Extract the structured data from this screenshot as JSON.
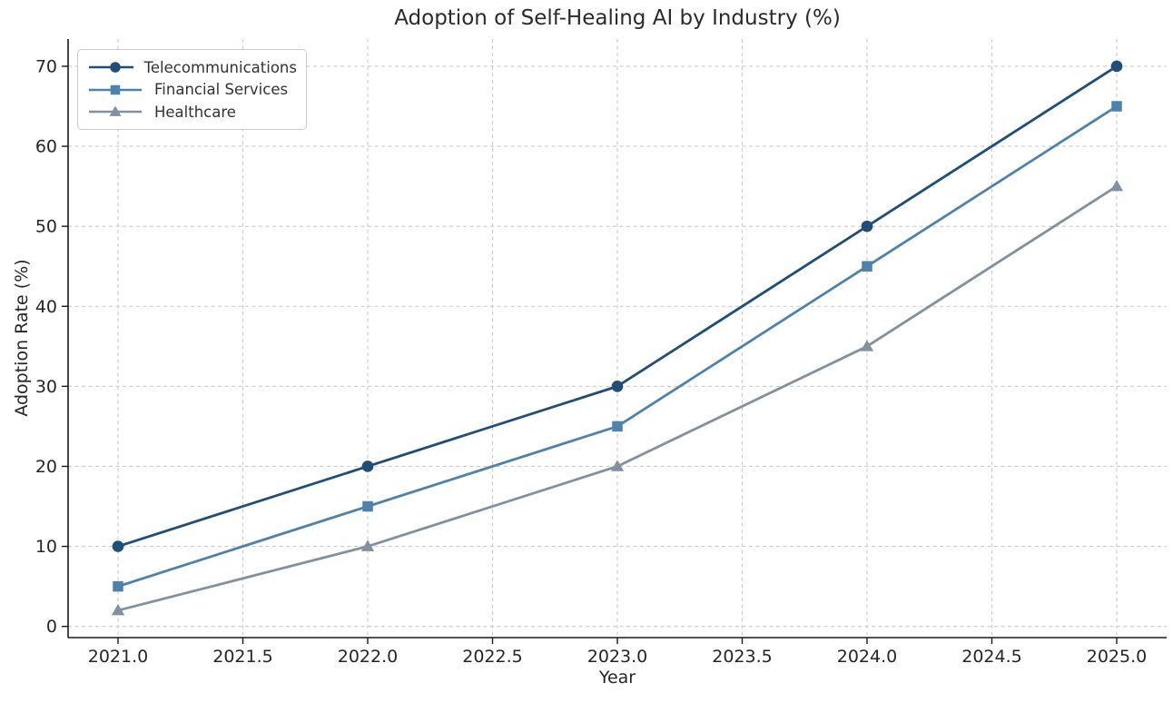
{
  "chart_data": {
    "type": "line",
    "title": "Adoption of Self-Healing AI by Industry (%)",
    "xlabel": "Year",
    "ylabel": "Adoption Rate (%)",
    "x": [
      2021,
      2022,
      2023,
      2024,
      2025
    ],
    "series": [
      {
        "name": "Telecommunications",
        "marker": "circle",
        "color": "#1f4e79",
        "values": [
          10,
          20,
          30,
          50,
          70
        ]
      },
      {
        "name": "Financial Services",
        "marker": "square",
        "color": "#4d82ac",
        "values": [
          5,
          15,
          25,
          45,
          65
        ]
      },
      {
        "name": "Healthcare",
        "marker": "triangle",
        "color": "#8291a0",
        "values": [
          2,
          10,
          20,
          35,
          55
        ]
      }
    ],
    "xlim": [
      2020.8,
      2025.2
    ],
    "ylim": [
      -1.4,
      73.4
    ],
    "xticks": {
      "values": [
        2021,
        2021.5,
        2022,
        2022.5,
        2023,
        2023.5,
        2024,
        2024.5,
        2025
      ],
      "labels": [
        "2021.0",
        "2021.5",
        "2022.0",
        "2022.5",
        "2023.0",
        "2023.5",
        "2024.0",
        "2024.5",
        "2025.0"
      ]
    },
    "yticks": {
      "values": [
        0,
        10,
        20,
        30,
        40,
        50,
        60,
        70
      ],
      "labels": [
        "0",
        "10",
        "20",
        "30",
        "40",
        "50",
        "60",
        "70"
      ]
    },
    "grid": true,
    "grid_style": "dashed",
    "legend_position": "upper-left",
    "colors": {
      "grid": "#cccccc",
      "spine": "#1a1a1a",
      "tick_text": "#262626",
      "legend_border": "#cccccc",
      "legend_bg": "#ffffff",
      "background": "#ffffff"
    }
  }
}
